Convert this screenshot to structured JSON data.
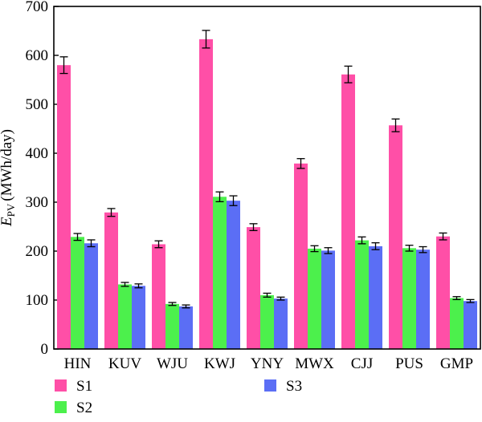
{
  "chart_data": {
    "type": "bar",
    "categories": [
      "HIN",
      "KUV",
      "WJU",
      "KWJ",
      "YNY",
      "MWX",
      "CJJ",
      "PUS",
      "GMP"
    ],
    "series": [
      {
        "name": "S1",
        "color": "#ff4fa7",
        "values": [
          580,
          279,
          214,
          633,
          249,
          379,
          561,
          457,
          230
        ],
        "errors": [
          17,
          8,
          7,
          18,
          7,
          10,
          17,
          13,
          7
        ]
      },
      {
        "name": "S2",
        "color": "#4cf04c",
        "values": [
          229,
          132,
          92,
          311,
          110,
          205,
          222,
          206,
          104
        ],
        "errors": [
          7,
          4,
          3,
          10,
          4,
          6,
          7,
          6,
          3
        ]
      },
      {
        "name": "S3",
        "color": "#5b6ef5",
        "values": [
          216,
          129,
          87,
          303,
          103,
          201,
          210,
          203,
          98
        ],
        "errors": [
          7,
          4,
          3,
          10,
          3,
          6,
          7,
          6,
          3
        ]
      }
    ],
    "ylabel_main": "E",
    "ylabel_sub": "PV",
    "ylabel_unit": "(MWh/day)",
    "ylim": [
      0,
      700
    ],
    "yticks": [
      0,
      100,
      200,
      300,
      400,
      500,
      600,
      700
    ],
    "grid": false,
    "legend_position": "bottom"
  }
}
